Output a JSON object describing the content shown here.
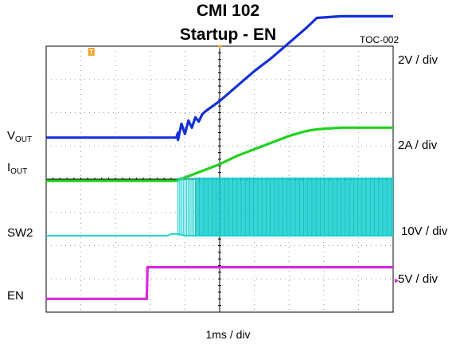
{
  "chart_data": {
    "type": "line",
    "title": "CMI 102",
    "subtitle": "Startup - EN",
    "tag": "TOC-002",
    "timebase": "1ms / div",
    "grid": true,
    "x_divisions": 10,
    "y_divisions": 8,
    "trigger_marker": "T",
    "x_unit": "ms",
    "series": [
      {
        "name": "VOUT",
        "label_main": "V",
        "label_sub": "OUT",
        "scale": "2V / div",
        "color": "#1530d8",
        "offset_div": 5.25,
        "x": [
          0,
          3.75,
          3.8,
          4.0,
          4.2,
          4.4,
          4.6,
          5.0,
          5.5,
          6.0,
          6.5,
          7.0,
          7.5,
          7.8,
          8.5,
          10.0
        ],
        "y": [
          0,
          0,
          0.15,
          0.45,
          0.55,
          0.7,
          0.8,
          1.1,
          1.55,
          2.0,
          2.4,
          2.85,
          3.3,
          3.6,
          3.65,
          3.65
        ]
      },
      {
        "name": "IOUT",
        "label_main": "I",
        "label_sub": "OUT",
        "scale": "2A / div",
        "color": "#1ed21e",
        "offset_div": 3.95,
        "x": [
          0,
          3.75,
          4.0,
          4.5,
          5.0,
          5.5,
          6.0,
          6.5,
          7.0,
          7.5,
          7.8,
          8.5,
          10.0
        ],
        "y": [
          0,
          0,
          0.1,
          0.3,
          0.5,
          0.75,
          0.95,
          1.15,
          1.35,
          1.5,
          1.55,
          1.6,
          1.6
        ]
      },
      {
        "name": "SW2",
        "label_main": "SW2",
        "label_sub": "",
        "scale": "10V / div",
        "color": "#1ed2d2",
        "offset_div": 2.3,
        "x": [
          0,
          3.5,
          3.6,
          3.8,
          4.0,
          10.0
        ],
        "y": [
          0,
          0,
          0.05,
          0.05,
          0,
          0
        ],
        "switching_start": 3.8,
        "switching_dense": 4.3,
        "switching_high": 1.75
      },
      {
        "name": "EN",
        "label_main": "EN",
        "label_sub": "",
        "scale": "5V / div",
        "color": "#dc28dc",
        "offset_div": 0.4,
        "x": [
          0,
          2.9,
          2.92,
          10.0
        ],
        "y": [
          0,
          0,
          0.95,
          0.95
        ]
      }
    ]
  }
}
